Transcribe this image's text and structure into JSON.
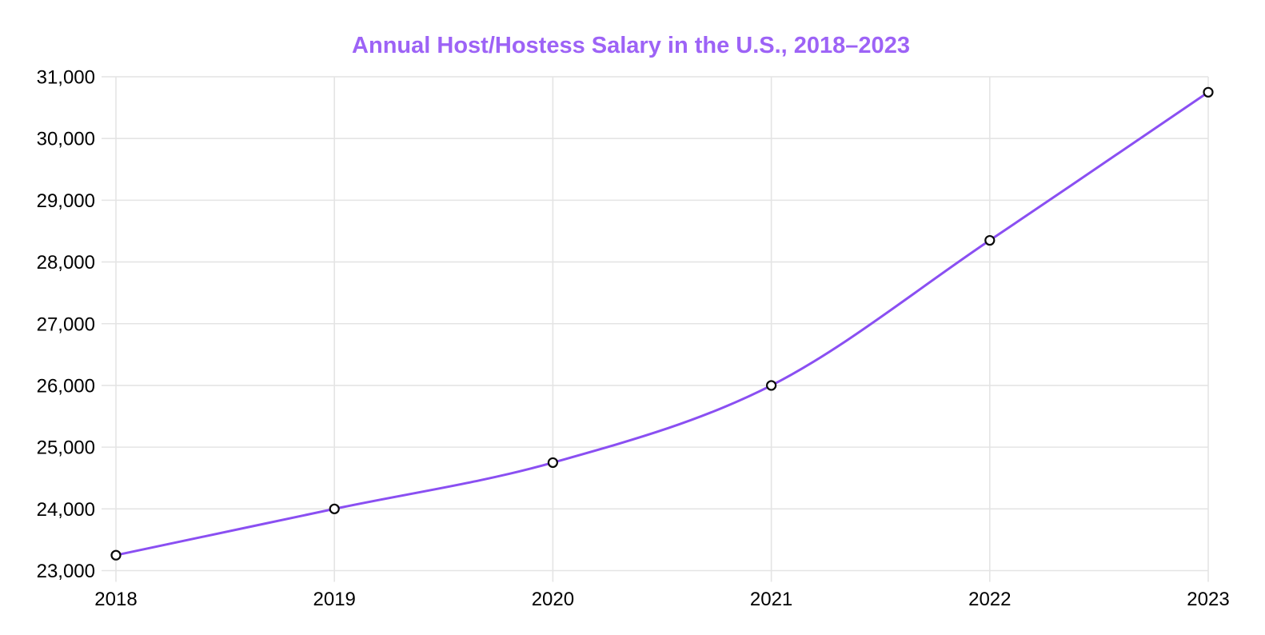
{
  "chart": {
    "title_color": "#9d63f6",
    "line_color": "#8a4ff2",
    "grid_color": "#e4e4e4",
    "text_color": "#000000",
    "marker_fill": "#ffffff",
    "marker_stroke": "#0a0a0a",
    "background": "#ffffff"
  },
  "chart_data": {
    "type": "line",
    "title": "Annual Host/Hostess Salary in the U.S., 2018–2023",
    "x": [
      2018,
      2019,
      2020,
      2021,
      2022,
      2023
    ],
    "xticklabels": [
      "2018",
      "2019",
      "2020",
      "2021",
      "2022",
      "2023"
    ],
    "values": [
      23250,
      24000,
      24750,
      26000,
      28350,
      30750
    ],
    "ylim": [
      23000,
      31000
    ],
    "ytick_step": 1000,
    "yticklabels": [
      "23,000",
      "24,000",
      "25,000",
      "26,000",
      "27,000",
      "28,000",
      "29,000",
      "30,000",
      "31,000"
    ],
    "xlabel": "",
    "ylabel": "",
    "grid": true,
    "legend": false,
    "line_style": "smooth",
    "marker": "open-circle"
  }
}
